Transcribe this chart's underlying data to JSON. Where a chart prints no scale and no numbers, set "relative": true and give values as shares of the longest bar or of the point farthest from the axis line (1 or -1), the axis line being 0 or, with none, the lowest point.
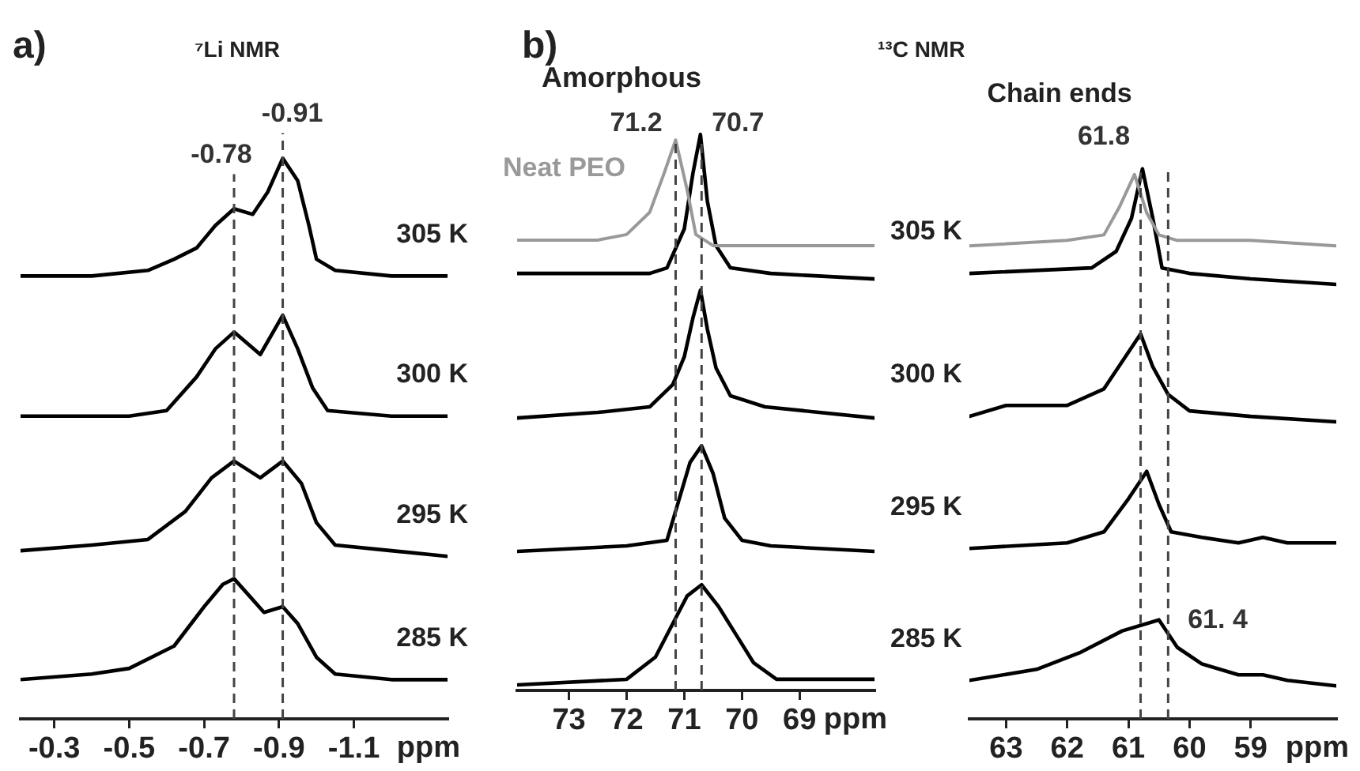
{
  "chart_data": [
    {
      "type": "line",
      "relative": true,
      "title": "⁷Li NMR",
      "xlabel": "ppm",
      "xlim": [
        -0.21,
        -1.35
      ],
      "xticks": [
        -0.3,
        -0.5,
        -0.7,
        -0.9,
        -1.1
      ],
      "marker": "none",
      "annotations": [
        "a)"
      ],
      "ref_lines": [
        {
          "axis": "x",
          "value": -0.78,
          "label": "-0.78",
          "color": "#444444",
          "line_style": "dashed"
        },
        {
          "axis": "x",
          "value": -0.91,
          "label": "-0.91",
          "color": "#444444",
          "line_style": "dashed"
        }
      ],
      "series": [
        {
          "name": "305 K",
          "color": "#000000",
          "x": [
            -0.21,
            -0.4,
            -0.55,
            -0.62,
            -0.68,
            -0.73,
            -0.78,
            -0.83,
            -0.87,
            -0.91,
            -0.95,
            -0.98,
            -1.0,
            -1.05,
            -1.2,
            -1.35
          ],
          "values": [
            0.79,
            0.79,
            0.8,
            0.82,
            0.84,
            0.88,
            0.91,
            0.9,
            0.94,
            1.0,
            0.96,
            0.88,
            0.82,
            0.8,
            0.79,
            0.79
          ]
        },
        {
          "name": "300 K",
          "color": "#000000",
          "x": [
            -0.21,
            -0.5,
            -0.6,
            -0.68,
            -0.73,
            -0.78,
            -0.85,
            -0.91,
            -0.95,
            -0.99,
            -1.03,
            -1.2,
            -1.35
          ],
          "values": [
            0.54,
            0.54,
            0.55,
            0.61,
            0.66,
            0.69,
            0.65,
            0.72,
            0.66,
            0.59,
            0.55,
            0.54,
            0.54
          ]
        },
        {
          "name": "295 K",
          "color": "#000000",
          "x": [
            -0.21,
            -0.4,
            -0.55,
            -0.65,
            -0.72,
            -0.78,
            -0.85,
            -0.91,
            -0.96,
            -1.0,
            -1.05,
            -1.2,
            -1.35
          ],
          "values": [
            0.3,
            0.31,
            0.32,
            0.37,
            0.43,
            0.46,
            0.43,
            0.46,
            0.42,
            0.35,
            0.31,
            0.3,
            0.29
          ]
        },
        {
          "name": "285 K",
          "color": "#000000",
          "x": [
            -0.21,
            -0.4,
            -0.5,
            -0.62,
            -0.7,
            -0.75,
            -0.78,
            -0.82,
            -0.86,
            -0.91,
            -0.95,
            -1.0,
            -1.05,
            -1.2,
            -1.35
          ],
          "values": [
            0.07,
            0.08,
            0.09,
            0.13,
            0.2,
            0.24,
            0.25,
            0.22,
            0.19,
            0.2,
            0.17,
            0.11,
            0.08,
            0.07,
            0.07
          ]
        }
      ]
    },
    {
      "type": "line",
      "relative": true,
      "title": "Amorphous",
      "xlabel": "ppm",
      "xlim": [
        73.9,
        67.7
      ],
      "xticks": [
        73,
        72,
        71,
        70,
        69
      ],
      "marker": "none",
      "annotations": [
        "b)"
      ],
      "ref_lines": [
        {
          "axis": "x",
          "value": 71.15,
          "label": "71.2",
          "color": "#444444",
          "line_style": "dashed"
        },
        {
          "axis": "x",
          "value": 70.7,
          "label": "70.7",
          "color": "#444444",
          "line_style": "dashed"
        }
      ],
      "series": [
        {
          "name": "Neat PEO",
          "color": "#999999",
          "x": [
            73.9,
            72.5,
            72.0,
            71.6,
            71.35,
            71.15,
            70.95,
            70.8,
            70.5,
            69.0,
            67.7
          ],
          "values": [
            0.81,
            0.81,
            0.82,
            0.86,
            0.93,
            0.99,
            0.9,
            0.82,
            0.8,
            0.8,
            0.8
          ]
        },
        {
          "color": "#000000",
          "x": [
            73.9,
            72.5,
            71.6,
            71.3,
            71.0,
            70.85,
            70.72,
            70.6,
            70.45,
            70.2,
            69.5,
            67.7
          ],
          "values": [
            0.75,
            0.75,
            0.75,
            0.76,
            0.83,
            0.93,
            1.0,
            0.88,
            0.8,
            0.76,
            0.75,
            0.74
          ]
        },
        {
          "color": "#000000",
          "x": [
            73.9,
            72.5,
            71.6,
            71.2,
            71.0,
            70.85,
            70.72,
            70.6,
            70.45,
            70.2,
            69.6,
            67.7
          ],
          "values": [
            0.49,
            0.5,
            0.51,
            0.55,
            0.6,
            0.67,
            0.72,
            0.65,
            0.58,
            0.53,
            0.51,
            0.49
          ]
        },
        {
          "color": "#000000",
          "x": [
            73.9,
            72.0,
            71.3,
            71.1,
            70.9,
            70.7,
            70.5,
            70.3,
            70.0,
            69.5,
            67.7
          ],
          "values": [
            0.25,
            0.26,
            0.27,
            0.34,
            0.41,
            0.44,
            0.39,
            0.31,
            0.27,
            0.26,
            0.25
          ]
        },
        {
          "color": "#000000",
          "x": [
            73.9,
            72.0,
            71.5,
            71.2,
            70.95,
            70.7,
            70.4,
            70.1,
            69.8,
            69.4,
            67.7
          ],
          "values": [
            0.01,
            0.02,
            0.06,
            0.12,
            0.17,
            0.19,
            0.15,
            0.1,
            0.05,
            0.02,
            0.02
          ]
        }
      ]
    },
    {
      "type": "line",
      "relative": true,
      "title": "Chain ends",
      "xlabel": "ppm",
      "xlim": [
        63.6,
        57.6
      ],
      "xticks": [
        63,
        62,
        61,
        60,
        59
      ],
      "marker": "none",
      "annotations": [
        "¹³C NMR",
        "61.8",
        "61. 4"
      ],
      "ref_lines": [
        {
          "axis": "x",
          "value": 60.8,
          "color": "#444444",
          "line_style": "dashed"
        },
        {
          "axis": "x",
          "value": 60.35,
          "color": "#444444",
          "line_style": "dashed"
        }
      ],
      "series": [
        {
          "color": "#999999",
          "x": [
            63.6,
            62.0,
            61.4,
            61.15,
            60.9,
            60.7,
            60.5,
            60.2,
            59.0,
            57.6
          ],
          "values": [
            0.86,
            0.87,
            0.88,
            0.93,
            0.99,
            0.92,
            0.88,
            0.87,
            0.87,
            0.86
          ]
        },
        {
          "name": "305 K",
          "color": "#000000",
          "x": [
            63.6,
            61.6,
            61.2,
            60.95,
            60.77,
            60.6,
            60.45,
            60.0,
            59.0,
            57.6
          ],
          "values": [
            0.81,
            0.82,
            0.85,
            0.91,
            1.0,
            0.91,
            0.82,
            0.81,
            0.8,
            0.79
          ]
        },
        {
          "name": "300 K",
          "color": "#000000",
          "x": [
            63.6,
            63.0,
            62.0,
            61.4,
            61.1,
            60.8,
            60.6,
            60.35,
            60.0,
            59.0,
            57.6
          ],
          "values": [
            0.55,
            0.57,
            0.57,
            0.6,
            0.65,
            0.7,
            0.64,
            0.59,
            0.56,
            0.55,
            0.54
          ]
        },
        {
          "name": "295 K",
          "color": "#000000",
          "x": [
            63.6,
            62.0,
            61.4,
            61.0,
            60.7,
            60.5,
            60.3,
            59.8,
            59.2,
            58.8,
            58.4,
            57.6
          ],
          "values": [
            0.31,
            0.32,
            0.34,
            0.4,
            0.45,
            0.39,
            0.34,
            0.33,
            0.32,
            0.33,
            0.32,
            0.32
          ]
        },
        {
          "name": "285 K",
          "color": "#000000",
          "x": [
            63.6,
            62.5,
            61.8,
            61.1,
            60.5,
            60.2,
            59.8,
            59.2,
            58.8,
            58.4,
            57.6
          ],
          "values": [
            0.07,
            0.09,
            0.12,
            0.16,
            0.18,
            0.13,
            0.1,
            0.08,
            0.08,
            0.07,
            0.06
          ]
        }
      ]
    }
  ]
}
